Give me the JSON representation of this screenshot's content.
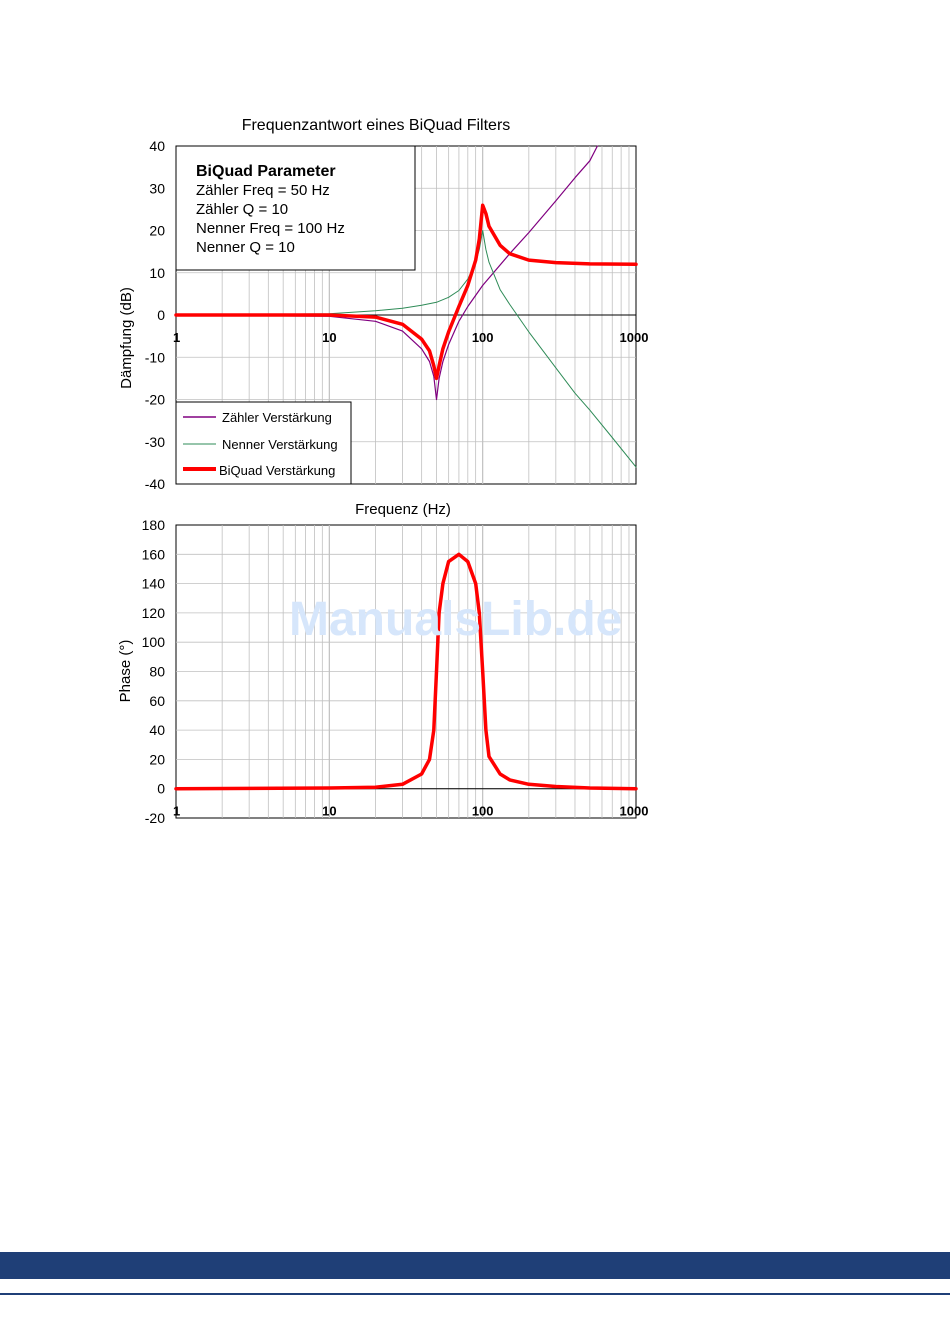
{
  "colors": {
    "biquad": "#ff0000",
    "zaehler": "#800080",
    "nenner": "#2e8b57",
    "grid": "#c0c0c0",
    "footer": "#1f3f77",
    "watermark": "#d6e6fb"
  },
  "watermark": "ManualsLib.de",
  "chart_data": [
    {
      "type": "line",
      "title": "Frequenzantwort eines BiQuad Filters",
      "xlabel": "Frequenz (Hz)",
      "ylabel": "Dämpfung (dB)",
      "xscale": "log",
      "xlim": [
        1,
        1000
      ],
      "ylim": [
        -40,
        40
      ],
      "x_ticks": [
        "1",
        "10",
        "100",
        "1000"
      ],
      "y_ticks": [
        "-40",
        "-30",
        "-20",
        "-10",
        "0",
        "10",
        "20",
        "30",
        "40"
      ],
      "grid": true,
      "parameter_box": {
        "heading": "BiQuad Parameter",
        "lines": [
          "Zähler Freq = 50 Hz",
          "Zähler Q = 10",
          "Nenner Freq = 100 Hz",
          "Nenner Q = 10"
        ]
      },
      "legend_position": "bottom-left",
      "series": [
        {
          "name": "Zähler Verstärkung",
          "color": "#800080",
          "points": [
            [
              1,
              0
            ],
            [
              10,
              -0.3
            ],
            [
              20,
              -1.5
            ],
            [
              30,
              -3.8
            ],
            [
              40,
              -8
            ],
            [
              45,
              -11
            ],
            [
              48,
              -14.5
            ],
            [
              50,
              -20
            ],
            [
              52,
              -15
            ],
            [
              55,
              -11
            ],
            [
              60,
              -7
            ],
            [
              70,
              -1.5
            ],
            [
              80,
              2
            ],
            [
              100,
              7
            ],
            [
              150,
              14.5
            ],
            [
              200,
              19.5
            ],
            [
              300,
              27
            ],
            [
              400,
              32.5
            ],
            [
              500,
              36.5
            ],
            [
              560,
              40
            ]
          ]
        },
        {
          "name": "Nenner Verstärkung",
          "color": "#2e8b57",
          "points": [
            [
              1,
              0
            ],
            [
              10,
              0.3
            ],
            [
              20,
              1
            ],
            [
              30,
              1.6
            ],
            [
              40,
              2.3
            ],
            [
              50,
              3
            ],
            [
              60,
              4.2
            ],
            [
              70,
              5.8
            ],
            [
              80,
              8.5
            ],
            [
              90,
              12.5
            ],
            [
              95,
              15.5
            ],
            [
              100,
              20
            ],
            [
              105,
              15.5
            ],
            [
              110,
              12.5
            ],
            [
              130,
              6
            ],
            [
              150,
              2.5
            ],
            [
              200,
              -4
            ],
            [
              300,
              -12.5
            ],
            [
              400,
              -18.5
            ],
            [
              500,
              -22.5
            ],
            [
              700,
              -29
            ],
            [
              1000,
              -36
            ]
          ]
        },
        {
          "name": "BiQuad Verstärkung",
          "color": "#ff0000",
          "points": [
            [
              1,
              0
            ],
            [
              10,
              0
            ],
            [
              20,
              -0.5
            ],
            [
              30,
              -2.2
            ],
            [
              40,
              -5.7
            ],
            [
              45,
              -8.5
            ],
            [
              48,
              -12
            ],
            [
              50,
              -15
            ],
            [
              52,
              -12
            ],
            [
              55,
              -8
            ],
            [
              60,
              -4
            ],
            [
              70,
              2
            ],
            [
              80,
              7
            ],
            [
              90,
              13
            ],
            [
              95,
              18
            ],
            [
              100,
              26
            ],
            [
              105,
              24
            ],
            [
              110,
              21
            ],
            [
              130,
              16.5
            ],
            [
              150,
              14.5
            ],
            [
              200,
              13
            ],
            [
              300,
              12.4
            ],
            [
              500,
              12.1
            ],
            [
              1000,
              12
            ]
          ]
        }
      ]
    },
    {
      "type": "line",
      "title": "",
      "xlabel": "",
      "ylabel": "Phase (°)",
      "xscale": "log",
      "xlim": [
        1,
        1000
      ],
      "ylim": [
        -20,
        180
      ],
      "x_ticks": [
        "1",
        "10",
        "100",
        "1000"
      ],
      "y_ticks": [
        "-20",
        "0",
        "20",
        "40",
        "60",
        "80",
        "100",
        "120",
        "140",
        "160",
        "180"
      ],
      "grid": true,
      "series": [
        {
          "name": "",
          "color": "#ff0000",
          "points": [
            [
              1,
              0
            ],
            [
              10,
              0.5
            ],
            [
              20,
              1
            ],
            [
              30,
              3
            ],
            [
              40,
              10
            ],
            [
              45,
              20
            ],
            [
              48,
              40
            ],
            [
              50,
              80
            ],
            [
              52,
              120
            ],
            [
              55,
              140
            ],
            [
              60,
              155
            ],
            [
              70,
              160
            ],
            [
              80,
              155
            ],
            [
              90,
              140
            ],
            [
              95,
              120
            ],
            [
              100,
              80
            ],
            [
              105,
              40
            ],
            [
              110,
              22
            ],
            [
              130,
              10
            ],
            [
              150,
              6
            ],
            [
              200,
              3
            ],
            [
              300,
              1.5
            ],
            [
              500,
              0.5
            ],
            [
              1000,
              0
            ]
          ]
        }
      ]
    }
  ]
}
